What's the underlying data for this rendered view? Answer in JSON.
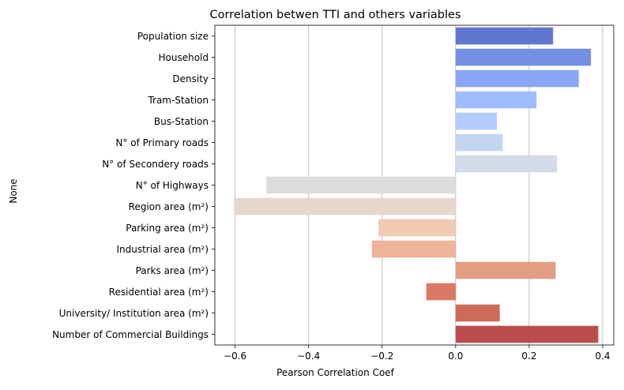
{
  "chart_data": {
    "type": "bar",
    "orientation": "horizontal",
    "title": "Correlation betwen TTI and others variables",
    "xlabel": "Pearson Correlation Coef",
    "ylabel": "None",
    "xlim": [
      -0.655,
      0.43
    ],
    "xticks": [
      -0.6,
      -0.4,
      -0.2,
      0.0,
      0.2,
      0.4
    ],
    "xtick_labels": [
      "−0.6",
      "−0.4",
      "−0.2",
      "0.0",
      "0.2",
      "0.4"
    ],
    "grid": "vertical",
    "palette": "coolwarm",
    "categories": [
      "Population size",
      "Household",
      "Density",
      "Tram-Station",
      "Bus-Station",
      "N° of Primary roads",
      "N° of Secondery roads",
      "N° of Highways",
      "Region area (m²)",
      "Parking area (m²)",
      "Industrial area  (m²) ",
      "Parks area  (m²)",
      "Residential area (m²)",
      "University/ Institution area (m²)",
      "Number of Commercial Buildings"
    ],
    "values": [
      0.265,
      0.368,
      0.335,
      0.22,
      0.112,
      0.128,
      0.276,
      -0.515,
      -0.603,
      -0.21,
      -0.228,
      0.272,
      -0.08,
      0.12,
      0.388
    ],
    "colors": [
      "#6077d0",
      "#7490e4",
      "#89a7f6",
      "#9fbdfe",
      "#b1cbfb",
      "#c4d5f2",
      "#d2dbe8",
      "#dcdcdc",
      "#e7d7cd",
      "#f0cab3",
      "#efb398",
      "#e39d82",
      "#db7a64",
      "#ce6a58",
      "#bc4c4b"
    ]
  }
}
